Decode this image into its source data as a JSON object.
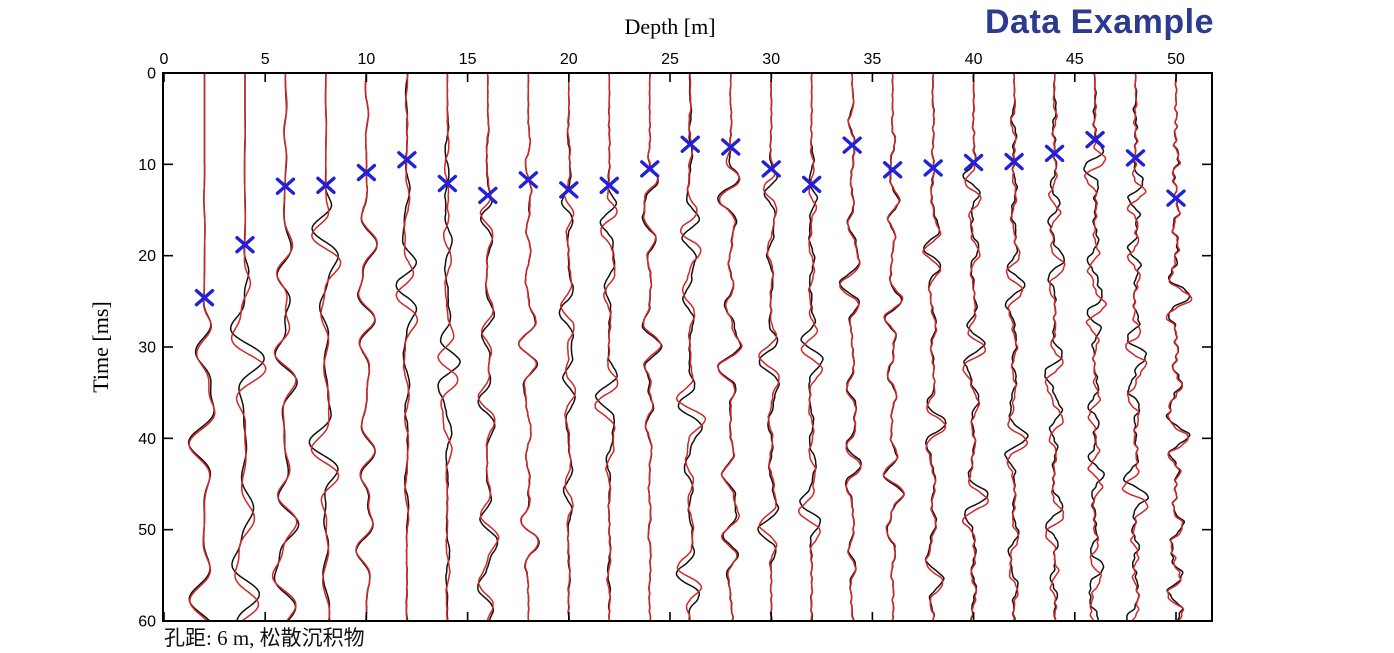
{
  "colors": {
    "title_blue": "#2c3b8e",
    "trace_black": "#111111",
    "trace_red": "#d42626",
    "pick_blue": "#2121d9",
    "axis": "#000000",
    "background": "#ffffff"
  },
  "caption": {
    "text": "孔距: 6 m, 松散沉积物"
  },
  "chart_data": {
    "type": "line",
    "subtype": "seismic-wiggle-trace-gather",
    "title": "Data Example",
    "xlabel": "Depth [m]",
    "ylabel": "Time [ms]",
    "xlim": [
      0,
      51.8
    ],
    "ylim": [
      0,
      60
    ],
    "y_axis_inverted": true,
    "x_axis_position": "top",
    "grid": false,
    "legend": "none",
    "x_ticks": [
      0,
      5,
      10,
      15,
      20,
      25,
      30,
      35,
      40,
      45,
      50
    ],
    "y_ticks": [
      0,
      10,
      20,
      30,
      40,
      50,
      60
    ],
    "trace_spacing_m": 2,
    "series": [
      {
        "id": "trace-black",
        "style": "wiggle",
        "color": "#111111"
      },
      {
        "id": "trace-red",
        "style": "wiggle",
        "color": "#d42626"
      }
    ],
    "pick_markers": {
      "marker": "x",
      "color": "#2121d9"
    },
    "traces": [
      {
        "depth_m": 2,
        "pick_ms": 24.6,
        "period_ms": 8.8,
        "amp": 22,
        "precursor": 0.1,
        "noise": 0.0,
        "quiet_ms": 70
      },
      {
        "depth_m": 4,
        "pick_ms": 18.8,
        "period_ms": 8.4,
        "amp": 21,
        "precursor": 0.12,
        "noise": 0.0,
        "quiet_ms": 70
      },
      {
        "depth_m": 6,
        "pick_ms": 12.4,
        "period_ms": 8.0,
        "amp": 20,
        "precursor": 0.15,
        "noise": 0.0,
        "quiet_ms": 70
      },
      {
        "depth_m": 8,
        "pick_ms": 12.3,
        "period_ms": 7.6,
        "amp": 18,
        "precursor": 0.15,
        "noise": 0.05,
        "quiet_ms": 64
      },
      {
        "depth_m": 10,
        "pick_ms": 10.9,
        "period_ms": 7.4,
        "amp": 18,
        "precursor": 0.18,
        "noise": 0.1,
        "quiet_ms": 60
      },
      {
        "depth_m": 12,
        "pick_ms": 9.5,
        "period_ms": 7.0,
        "amp": 17,
        "precursor": 0.22,
        "noise": 0.15,
        "quiet_ms": 36
      },
      {
        "depth_m": 14,
        "pick_ms": 12.1,
        "period_ms": 6.8,
        "amp": 16,
        "precursor": 0.2,
        "noise": 0.2,
        "quiet_ms": 40
      },
      {
        "depth_m": 16,
        "pick_ms": 13.4,
        "period_ms": 6.6,
        "amp": 16,
        "precursor": 0.2,
        "noise": 0.2,
        "quiet_ms": 58
      },
      {
        "depth_m": 18,
        "pick_ms": 11.7,
        "period_ms": 6.4,
        "amp": 15,
        "precursor": 0.2,
        "noise": 0.25,
        "quiet_ms": 50
      },
      {
        "depth_m": 20,
        "pick_ms": 12.8,
        "period_ms": 6.4,
        "amp": 15,
        "precursor": 0.2,
        "noise": 0.25,
        "quiet_ms": 44
      },
      {
        "depth_m": 22,
        "pick_ms": 12.3,
        "period_ms": 6.2,
        "amp": 14,
        "precursor": 0.2,
        "noise": 0.3,
        "quiet_ms": 42
      },
      {
        "depth_m": 24,
        "pick_ms": 10.5,
        "period_ms": 6.0,
        "amp": 15,
        "precursor": 0.22,
        "noise": 0.3,
        "quiet_ms": 40
      },
      {
        "depth_m": 26,
        "pick_ms": 7.8,
        "period_ms": 6.0,
        "amp": 16,
        "precursor": 0.22,
        "noise": 0.3,
        "quiet_ms": 56
      },
      {
        "depth_m": 28,
        "pick_ms": 8.1,
        "period_ms": 6.0,
        "amp": 16,
        "precursor": 0.22,
        "noise": 0.35,
        "quiet_ms": 58
      },
      {
        "depth_m": 30,
        "pick_ms": 10.5,
        "period_ms": 6.0,
        "amp": 14,
        "precursor": 0.2,
        "noise": 0.35,
        "quiet_ms": 50
      },
      {
        "depth_m": 32,
        "pick_ms": 12.2,
        "period_ms": 5.8,
        "amp": 14,
        "precursor": 0.2,
        "noise": 0.4,
        "quiet_ms": 48
      },
      {
        "depth_m": 34,
        "pick_ms": 7.9,
        "period_ms": 5.8,
        "amp": 15,
        "precursor": 0.25,
        "noise": 0.4,
        "quiet_ms": 52
      },
      {
        "depth_m": 36,
        "pick_ms": 10.6,
        "period_ms": 5.6,
        "amp": 14,
        "precursor": 0.25,
        "noise": 0.45,
        "quiet_ms": 54
      },
      {
        "depth_m": 38,
        "pick_ms": 10.4,
        "period_ms": 5.6,
        "amp": 14,
        "precursor": 0.25,
        "noise": 0.5,
        "quiet_ms": 54
      },
      {
        "depth_m": 40,
        "pick_ms": 9.8,
        "period_ms": 5.4,
        "amp": 15,
        "precursor": 0.28,
        "noise": 0.55,
        "quiet_ms": 56
      },
      {
        "depth_m": 42,
        "pick_ms": 9.7,
        "period_ms": 5.4,
        "amp": 14,
        "precursor": 0.28,
        "noise": 0.6,
        "quiet_ms": 52
      },
      {
        "depth_m": 44,
        "pick_ms": 8.8,
        "period_ms": 5.4,
        "amp": 14,
        "precursor": 0.3,
        "noise": 0.7,
        "quiet_ms": 54
      },
      {
        "depth_m": 46,
        "pick_ms": 7.3,
        "period_ms": 5.2,
        "amp": 14,
        "precursor": 0.32,
        "noise": 0.8,
        "quiet_ms": 56
      },
      {
        "depth_m": 48,
        "pick_ms": 9.3,
        "period_ms": 5.0,
        "amp": 15,
        "precursor": 0.35,
        "noise": 0.9,
        "quiet_ms": 60
      },
      {
        "depth_m": 50,
        "pick_ms": 13.7,
        "period_ms": 5.0,
        "amp": 16,
        "precursor": 0.4,
        "noise": 1.1,
        "quiet_ms": 60
      }
    ]
  }
}
